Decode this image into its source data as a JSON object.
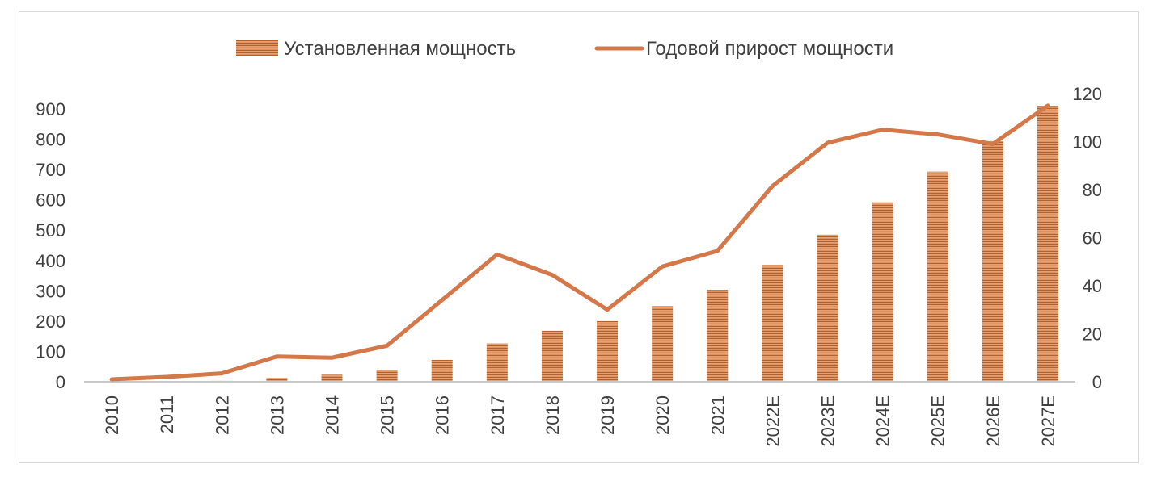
{
  "chart_data": {
    "type": "bar",
    "categories": [
      "2010",
      "2011",
      "2012",
      "2013",
      "2014",
      "2015",
      "2016",
      "2017",
      "2018",
      "2019",
      "2020",
      "2021",
      "2022E",
      "2023E",
      "2024E",
      "2025E",
      "2026E",
      "2027E"
    ],
    "series": [
      {
        "name": "Установленная мощность",
        "type": "bar",
        "axis": "left",
        "values": [
          0.5,
          1.5,
          3,
          13,
          23,
          38,
          72,
          126,
          168,
          200,
          250,
          303,
          386,
          485,
          592,
          693,
          794,
          910
        ]
      },
      {
        "name": "Годовой прирост мощности",
        "type": "line",
        "axis": "right",
        "values": [
          1,
          2,
          3.5,
          10.5,
          10,
          15,
          34,
          53,
          44.5,
          30,
          48,
          54.5,
          81.5,
          99.5,
          105,
          103,
          99,
          115
        ]
      }
    ],
    "y_left": {
      "min": 0,
      "max": 900,
      "ticks": [
        0,
        100,
        200,
        300,
        400,
        500,
        600,
        700,
        800,
        900
      ]
    },
    "y_right": {
      "min": 0,
      "max": 120,
      "ticks": [
        0,
        20,
        40,
        60,
        80,
        100,
        120
      ]
    },
    "legend_position": "top-center",
    "grid": false,
    "colors": {
      "bar": "#e0915a",
      "bar_stripe": "#ad5a2c",
      "line": "#d4784a",
      "axis": "#c8c8c8",
      "text": "#404040"
    }
  }
}
